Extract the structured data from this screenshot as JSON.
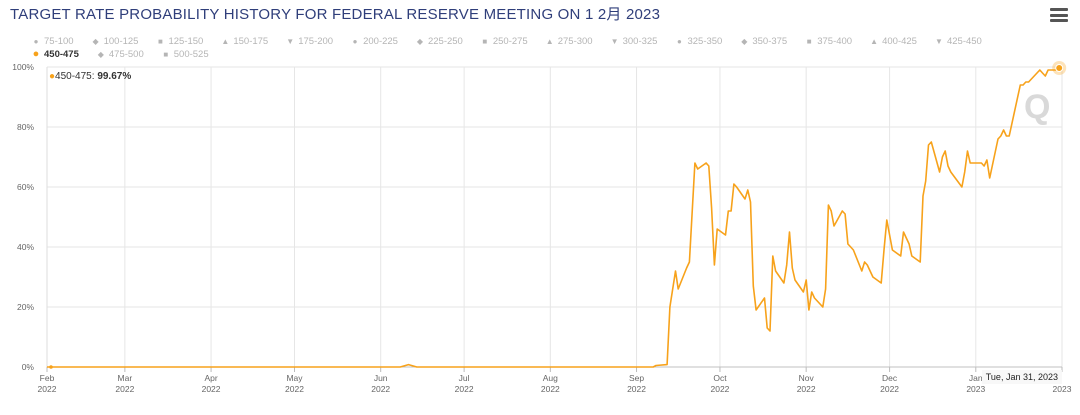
{
  "title": "TARGET RATE PROBABILITY HISTORY FOR FEDERAL RESERVE MEETING ON 1 2月 2023",
  "menu_icon": "hamburger-icon",
  "legend": [
    {
      "label": "75-100",
      "sym": "●"
    },
    {
      "label": "100-125",
      "sym": "◆"
    },
    {
      "label": "125-150",
      "sym": "■"
    },
    {
      "label": "150-175",
      "sym": "▲"
    },
    {
      "label": "175-200",
      "sym": "▼"
    },
    {
      "label": "200-225",
      "sym": "●"
    },
    {
      "label": "225-250",
      "sym": "◆"
    },
    {
      "label": "250-275",
      "sym": "■"
    },
    {
      "label": "275-300",
      "sym": "▲"
    },
    {
      "label": "300-325",
      "sym": "▼"
    },
    {
      "label": "325-350",
      "sym": "●"
    },
    {
      "label": "350-375",
      "sym": "◆"
    },
    {
      "label": "375-400",
      "sym": "■"
    },
    {
      "label": "400-425",
      "sym": "▲"
    },
    {
      "label": "425-450",
      "sym": "▼"
    },
    {
      "label": "450-475",
      "sym": "●",
      "active": true
    },
    {
      "label": "475-500",
      "sym": "◆"
    },
    {
      "label": "500-525",
      "sym": "■"
    }
  ],
  "tooltip": {
    "series": "450-475: ",
    "value": "99.67%",
    "date": "Tue, Jan 31, 2023"
  },
  "colors": {
    "series": "#f7a21b",
    "grid": "#e6e6e6",
    "axis_text": "#666666"
  },
  "chart_data": {
    "type": "line",
    "title": "TARGET RATE PROBABILITY HISTORY FOR FEDERAL RESERVE MEETING ON 1 2月 2023",
    "xlabel": "",
    "ylabel": "",
    "ylim": [
      0,
      100
    ],
    "yticks": [
      "0%",
      "20%",
      "40%",
      "60%",
      "80%",
      "100%"
    ],
    "xticks": [
      {
        "month": "Feb",
        "year": "2022",
        "date": "2022-02-01"
      },
      {
        "month": "Mar",
        "year": "2022",
        "date": "2022-03-01"
      },
      {
        "month": "Apr",
        "year": "2022",
        "date": "2022-04-01"
      },
      {
        "month": "May",
        "year": "2022",
        "date": "2022-05-01"
      },
      {
        "month": "Jun",
        "year": "2022",
        "date": "2022-06-01"
      },
      {
        "month": "Jul",
        "year": "2022",
        "date": "2022-07-01"
      },
      {
        "month": "Aug",
        "year": "2022",
        "date": "2022-08-01"
      },
      {
        "month": "Sep",
        "year": "2022",
        "date": "2022-09-01"
      },
      {
        "month": "Oct",
        "year": "2022",
        "date": "2022-10-01"
      },
      {
        "month": "Nov",
        "year": "2022",
        "date": "2022-11-01"
      },
      {
        "month": "Dec",
        "year": "2022",
        "date": "2022-12-01"
      },
      {
        "month": "Jan",
        "year": "2023",
        "date": "2023-01-01"
      },
      {
        "month": "",
        "year": "2023",
        "date": "2023-02-01"
      }
    ],
    "grid": true,
    "series": [
      {
        "name": "450-475",
        "points": [
          [
            "2022-02-01",
            0
          ],
          [
            "2022-06-08",
            0
          ],
          [
            "2022-06-11",
            0.8
          ],
          [
            "2022-06-14",
            0
          ],
          [
            "2022-09-01",
            0
          ],
          [
            "2022-09-07",
            0
          ],
          [
            "2022-09-08",
            0.5
          ],
          [
            "2022-09-12",
            0.8
          ],
          [
            "2022-09-13",
            20
          ],
          [
            "2022-09-15",
            32
          ],
          [
            "2022-09-16",
            26
          ],
          [
            "2022-09-19",
            33
          ],
          [
            "2022-09-20",
            35
          ],
          [
            "2022-09-22",
            68
          ],
          [
            "2022-09-23",
            66
          ],
          [
            "2022-09-26",
            68
          ],
          [
            "2022-09-27",
            67
          ],
          [
            "2022-09-28",
            53
          ],
          [
            "2022-09-29",
            34
          ],
          [
            "2022-09-30",
            46
          ],
          [
            "2022-10-03",
            44
          ],
          [
            "2022-10-04",
            52
          ],
          [
            "2022-10-05",
            52
          ],
          [
            "2022-10-06",
            61
          ],
          [
            "2022-10-07",
            60
          ],
          [
            "2022-10-10",
            56
          ],
          [
            "2022-10-11",
            59
          ],
          [
            "2022-10-12",
            55
          ],
          [
            "2022-10-13",
            27
          ],
          [
            "2022-10-14",
            19
          ],
          [
            "2022-10-17",
            23
          ],
          [
            "2022-10-18",
            13
          ],
          [
            "2022-10-19",
            12
          ],
          [
            "2022-10-20",
            37
          ],
          [
            "2022-10-21",
            32
          ],
          [
            "2022-10-24",
            28
          ],
          [
            "2022-10-25",
            34
          ],
          [
            "2022-10-26",
            45
          ],
          [
            "2022-10-27",
            33
          ],
          [
            "2022-10-28",
            29
          ],
          [
            "2022-10-31",
            25
          ],
          [
            "2022-11-01",
            29
          ],
          [
            "2022-11-02",
            19
          ],
          [
            "2022-11-03",
            25
          ],
          [
            "2022-11-04",
            23
          ],
          [
            "2022-11-07",
            20
          ],
          [
            "2022-11-08",
            26
          ],
          [
            "2022-11-09",
            54
          ],
          [
            "2022-11-10",
            52
          ],
          [
            "2022-11-11",
            47
          ],
          [
            "2022-11-14",
            52
          ],
          [
            "2022-11-15",
            51
          ],
          [
            "2022-11-16",
            41
          ],
          [
            "2022-11-17",
            40
          ],
          [
            "2022-11-18",
            39
          ],
          [
            "2022-11-21",
            32
          ],
          [
            "2022-11-22",
            35
          ],
          [
            "2022-11-23",
            34
          ],
          [
            "2022-11-25",
            30
          ],
          [
            "2022-11-28",
            28
          ],
          [
            "2022-11-29",
            39
          ],
          [
            "2022-11-30",
            49
          ],
          [
            "2022-12-01",
            44
          ],
          [
            "2022-12-02",
            39
          ],
          [
            "2022-12-05",
            37
          ],
          [
            "2022-12-06",
            45
          ],
          [
            "2022-12-07",
            43
          ],
          [
            "2022-12-08",
            41
          ],
          [
            "2022-12-09",
            37
          ],
          [
            "2022-12-12",
            35
          ],
          [
            "2022-12-13",
            57
          ],
          [
            "2022-12-14",
            62
          ],
          [
            "2022-12-15",
            74
          ],
          [
            "2022-12-16",
            75
          ],
          [
            "2022-12-19",
            65
          ],
          [
            "2022-12-20",
            70
          ],
          [
            "2022-12-21",
            72
          ],
          [
            "2022-12-22",
            67
          ],
          [
            "2022-12-23",
            65
          ],
          [
            "2022-12-27",
            60
          ],
          [
            "2022-12-28",
            65
          ],
          [
            "2022-12-29",
            72
          ],
          [
            "2022-12-30",
            68
          ],
          [
            "2023-01-03",
            68
          ],
          [
            "2023-01-04",
            67
          ],
          [
            "2023-01-05",
            69
          ],
          [
            "2023-01-06",
            63
          ],
          [
            "2023-01-09",
            76
          ],
          [
            "2023-01-10",
            77
          ],
          [
            "2023-01-11",
            79
          ],
          [
            "2023-01-12",
            77
          ],
          [
            "2023-01-13",
            77
          ],
          [
            "2023-01-17",
            94
          ],
          [
            "2023-01-18",
            94
          ],
          [
            "2023-01-19",
            95
          ],
          [
            "2023-01-20",
            95
          ],
          [
            "2023-01-23",
            98
          ],
          [
            "2023-01-24",
            99
          ],
          [
            "2023-01-25",
            98
          ],
          [
            "2023-01-26",
            97
          ],
          [
            "2023-01-27",
            99
          ],
          [
            "2023-01-30",
            99
          ],
          [
            "2023-01-31",
            99.67
          ]
        ]
      }
    ]
  }
}
